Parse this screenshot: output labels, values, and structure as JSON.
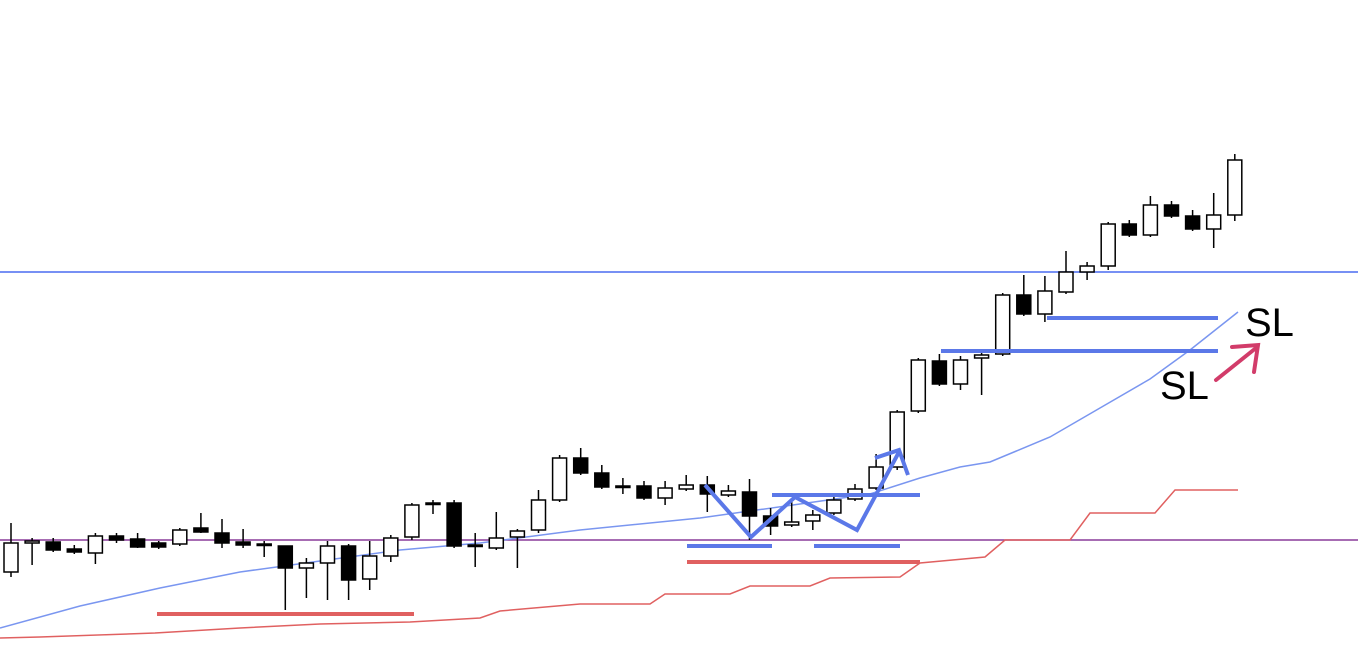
{
  "chart_data": {
    "type": "candlestick",
    "annotations": [
      "SL",
      "SL"
    ],
    "ylim": [
      0,
      648
    ],
    "up_color": "#ffffff",
    "down_color": "#000000",
    "open": [
      76,
      105,
      106,
      99,
      95,
      112,
      109,
      105,
      104,
      120,
      115,
      106,
      104,
      102,
      80,
      85,
      102,
      69,
      92,
      111,
      145,
      145,
      103,
      100,
      111,
      118,
      148,
      190,
      175,
      162,
      162,
      150,
      159,
      163,
      153,
      156,
      132,
      123,
      127,
      135,
      149,
      160,
      181,
      237,
      287,
      264,
      290,
      294,
      353,
      334,
      356,
      376,
      382,
      424,
      413,
      443,
      432,
      419,
      433
    ],
    "high": [
      125,
      110,
      110,
      103,
      115,
      115,
      115,
      107,
      120,
      135,
      129,
      119,
      107,
      102,
      90,
      107,
      104,
      107,
      113,
      145,
      148,
      148,
      115,
      136,
      119,
      158,
      193,
      200,
      183,
      170,
      167,
      167,
      173,
      172,
      163,
      169,
      140,
      148,
      138,
      154,
      164,
      194,
      238,
      290,
      294,
      292,
      295,
      355,
      373,
      372,
      397,
      386,
      426,
      428,
      452,
      447,
      438,
      455,
      494
    ],
    "low": [
      71,
      83,
      96,
      94,
      84,
      105,
      100,
      99,
      102,
      115,
      100,
      100,
      91,
      38,
      50,
      48,
      48,
      58,
      86,
      108,
      134,
      100,
      81,
      98,
      80,
      115,
      146,
      173,
      159,
      154,
      148,
      143,
      157,
      136,
      151,
      108,
      113,
      121,
      118,
      133,
      147,
      158,
      178,
      235,
      262,
      258,
      253,
      292,
      332,
      326,
      354,
      368,
      378,
      411,
      411,
      430,
      417,
      400,
      427
    ],
    "close": [
      105,
      107,
      98,
      96,
      112,
      108,
      101,
      101,
      118,
      116,
      105,
      103,
      104,
      80,
      85,
      102,
      68,
      92,
      110,
      143,
      145,
      102,
      103,
      110,
      117,
      148,
      190,
      175,
      161,
      162,
      150,
      160,
      163,
      154,
      157,
      132,
      122,
      126,
      133,
      148,
      159,
      181,
      236,
      288,
      264,
      288,
      293,
      353,
      334,
      357,
      376,
      382,
      424,
      413,
      443,
      432,
      419,
      433,
      488
    ]
  }
}
